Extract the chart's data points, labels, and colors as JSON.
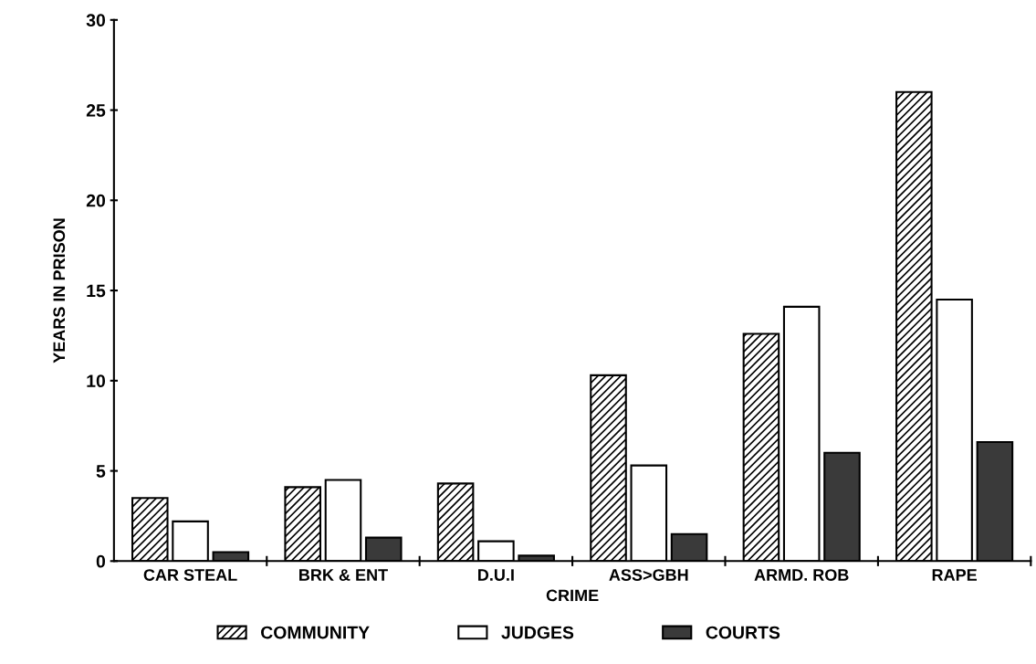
{
  "chart_data": {
    "type": "bar",
    "xlabel": "CRIME",
    "ylabel": "YEARS IN PRISON",
    "categories": [
      "CAR STEAL",
      "BRK & ENT",
      "D.U.I",
      "ASS>GBH",
      "ARMD. ROB",
      "RAPE"
    ],
    "series": [
      {
        "name": "COMMUNITY",
        "color": "#000000",
        "values": [
          3.5,
          4.1,
          4.3,
          10.3,
          12.6,
          26.0
        ]
      },
      {
        "name": "JUDGES",
        "color": "#ffffff",
        "values": [
          2.2,
          4.5,
          1.1,
          5.3,
          14.1,
          14.5
        ]
      },
      {
        "name": "COURTS",
        "color": "#3a3a3a",
        "values": [
          0.5,
          1.3,
          0.3,
          1.5,
          6.0,
          6.6
        ]
      }
    ],
    "ylim": [
      0,
      30
    ],
    "yticks": [
      0,
      5,
      10,
      15,
      20,
      25,
      30
    ],
    "grid": false,
    "legend": "bottom"
  }
}
